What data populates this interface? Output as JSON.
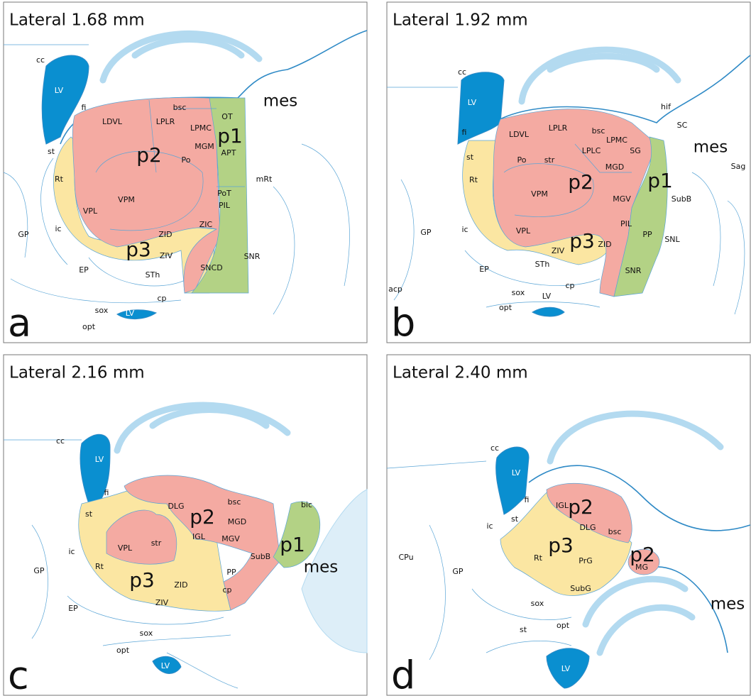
{
  "panels": [
    {
      "title": "Lateral 1.68 mm",
      "letter": "a",
      "labels": [
        "cc",
        "LV",
        "fi",
        "LDVL",
        "bsc",
        "LPLR",
        "LPMC",
        "OT",
        "mes",
        "p1",
        "APT",
        "MGM",
        "p2",
        "Po",
        "st",
        "Rt",
        "mRt",
        "VPM",
        "PoT",
        "PIL",
        "VPL",
        "GP",
        "ic",
        "ZIC",
        "ZID",
        "p3",
        "ZIV",
        "SNR",
        "EP",
        "STh",
        "SNCD",
        "cp",
        "sox",
        "LV",
        "opt"
      ]
    },
    {
      "title": "Lateral 1.92 mm",
      "letter": "b",
      "labels": [
        "cc",
        "LV",
        "hif",
        "fi",
        "LDVL",
        "LPLR",
        "bsc",
        "LPMC",
        "SC",
        "mes",
        "LPLC",
        "SG",
        "st",
        "Po",
        "str",
        "MGD",
        "Sag",
        "p1",
        "p2",
        "Rt",
        "VPM",
        "MGV",
        "SubB",
        "PIL",
        "GP",
        "ic",
        "VPL",
        "PP",
        "SNL",
        "p3",
        "ZID",
        "ZIV",
        "SNR",
        "EP",
        "STh",
        "cp",
        "acp",
        "sox",
        "LV",
        "opt"
      ]
    },
    {
      "title": "Lateral 2.16 mm",
      "letter": "c",
      "labels": [
        "cc",
        "LV",
        "fi",
        "bsc",
        "DLG",
        "bic",
        "st",
        "p2",
        "MGD",
        "p1",
        "VPL",
        "str",
        "IGL",
        "MGV",
        "mes",
        "Rt",
        "SubB",
        "ic",
        "GP",
        "p3",
        "ZID",
        "PP",
        "ZIV",
        "EP",
        "cp",
        "sox",
        "opt",
        "LV"
      ]
    },
    {
      "title": "Lateral 2.40 mm",
      "letter": "d",
      "labels": [
        "cc",
        "LV",
        "fi",
        "IGL",
        "p2",
        "DLG",
        "bsc",
        "st",
        "ic",
        "p3",
        "CPu",
        "Rt",
        "PrG",
        "p2",
        "MG",
        "GP",
        "SubG",
        "mes",
        "sox",
        "opt",
        "st",
        "LV"
      ]
    }
  ]
}
